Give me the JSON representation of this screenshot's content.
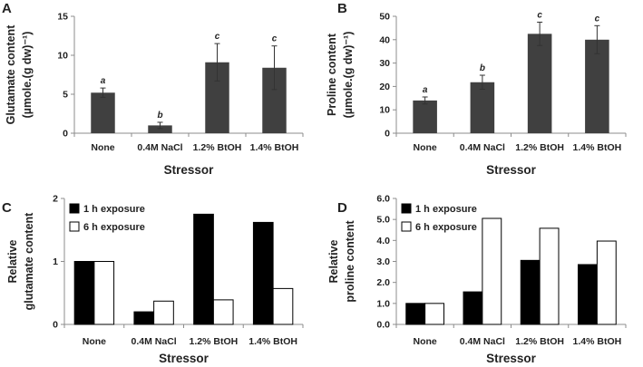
{
  "chart_data": [
    {
      "panel": "A",
      "type": "bar",
      "categories": [
        "None",
        "0.4M NaCl",
        "1.2% BtOH",
        "1.4% BtOH"
      ],
      "values": [
        5.2,
        1.0,
        9.1,
        8.4
      ],
      "errors": [
        0.6,
        0.4,
        2.4,
        2.8
      ],
      "significance": [
        "a",
        "b",
        "c",
        "c"
      ],
      "xlabel": "Stressor",
      "ylabel_lines": [
        "Glutamate content",
        "(µmole.(g dw)⁻¹)"
      ],
      "ylim": [
        0,
        15
      ],
      "yticks": [
        0,
        5,
        10,
        15
      ],
      "ytick_labels": [
        "0",
        "5",
        "10",
        "15"
      ],
      "color": "#404040"
    },
    {
      "panel": "B",
      "type": "bar",
      "categories": [
        "None",
        "0.4M NaCl",
        "1.2% BtOH",
        "1.4% BtOH"
      ],
      "values": [
        14,
        21.8,
        42.5,
        40
      ],
      "errors": [
        1.5,
        3,
        5,
        6
      ],
      "significance": [
        "a",
        "b",
        "c",
        "c"
      ],
      "xlabel": "Stressor",
      "ylabel_lines": [
        "Proline content",
        "(µmole.(g dw)⁻¹)"
      ],
      "ylim": [
        0,
        50
      ],
      "yticks": [
        0,
        10,
        20,
        30,
        40,
        50
      ],
      "ytick_labels": [
        "0",
        "10",
        "20",
        "30",
        "40",
        "50"
      ],
      "color": "#404040"
    },
    {
      "panel": "C",
      "type": "bar",
      "categories": [
        "None",
        "0.4M NaCl",
        "1.2% BtOH",
        "1.4% BtOH"
      ],
      "series": [
        {
          "name": "1 h exposure",
          "values": [
            1.0,
            0.2,
            1.75,
            1.62
          ],
          "color": "#000000"
        },
        {
          "name": "6 h exposure",
          "values": [
            1.0,
            0.37,
            0.39,
            0.57
          ],
          "color": "#ffffff"
        }
      ],
      "xlabel": "Stressor",
      "ylabel_lines": [
        "Relative",
        "glutamate content"
      ],
      "ylim": [
        0,
        2
      ],
      "yticks": [
        0,
        1,
        2
      ],
      "ytick_labels": [
        "0",
        "1",
        "2"
      ],
      "legend": "top-left"
    },
    {
      "panel": "D",
      "type": "bar",
      "categories": [
        "None",
        "0.4M NaCl",
        "1.2% BtOH",
        "1.4% BtOH"
      ],
      "series": [
        {
          "name": "1 h exposure",
          "values": [
            1.0,
            1.55,
            3.05,
            2.85
          ],
          "color": "#000000"
        },
        {
          "name": "6 h exposure",
          "values": [
            1.0,
            5.05,
            4.58,
            3.97
          ],
          "color": "#ffffff"
        }
      ],
      "xlabel": "Stressor",
      "ylabel_lines": [
        "Relative",
        "proline content"
      ],
      "ylim": [
        0,
        6
      ],
      "yticks": [
        0,
        1,
        2,
        3,
        4,
        5,
        6
      ],
      "ytick_labels": [
        "0.0",
        "1.0",
        "2.0",
        "3.0",
        "4.0",
        "5.0",
        "6.0"
      ],
      "legend": "top-left"
    }
  ]
}
